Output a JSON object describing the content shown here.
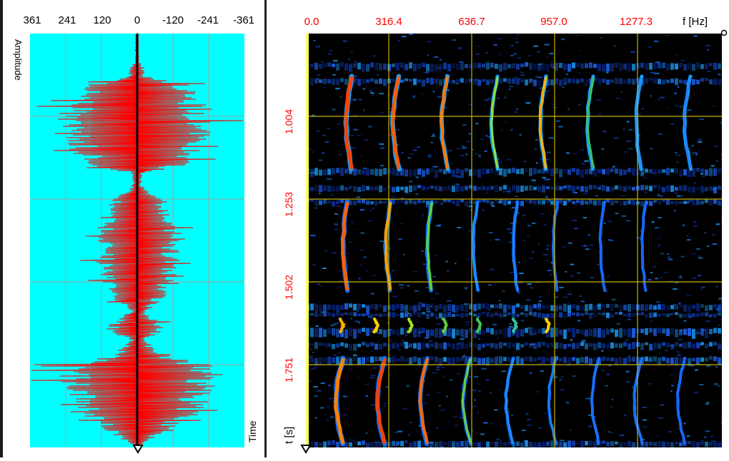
{
  "waveform_panel": {
    "amplitude_ticks": [
      "361",
      "241",
      "120",
      "0",
      "-120",
      "-241",
      "-361"
    ],
    "amplitude_label": "Amplitude",
    "time_label": "Time",
    "background_color": "#00ffff",
    "waveform_color": "#ff0000",
    "grid_color": "#a0a0a0"
  },
  "spectrogram_panel": {
    "freq_ticks": [
      "0.0",
      "316.4",
      "636.7",
      "957.0",
      "1277.3"
    ],
    "freq_unit_label": "f [Hz]",
    "time_ticks": [
      "1.004",
      "1.253",
      "1.502",
      "1.751"
    ],
    "time_unit_label": "t [s]",
    "tick_label_color": "#ff0000",
    "grid_color": "#c8b400",
    "background_color": "#000000"
  },
  "icons": {
    "waveform_cursor": "triangle-marker-icon",
    "spectrogram_cursor": "triangle-marker-icon",
    "corner_handle": "resize-circle-icon"
  }
}
